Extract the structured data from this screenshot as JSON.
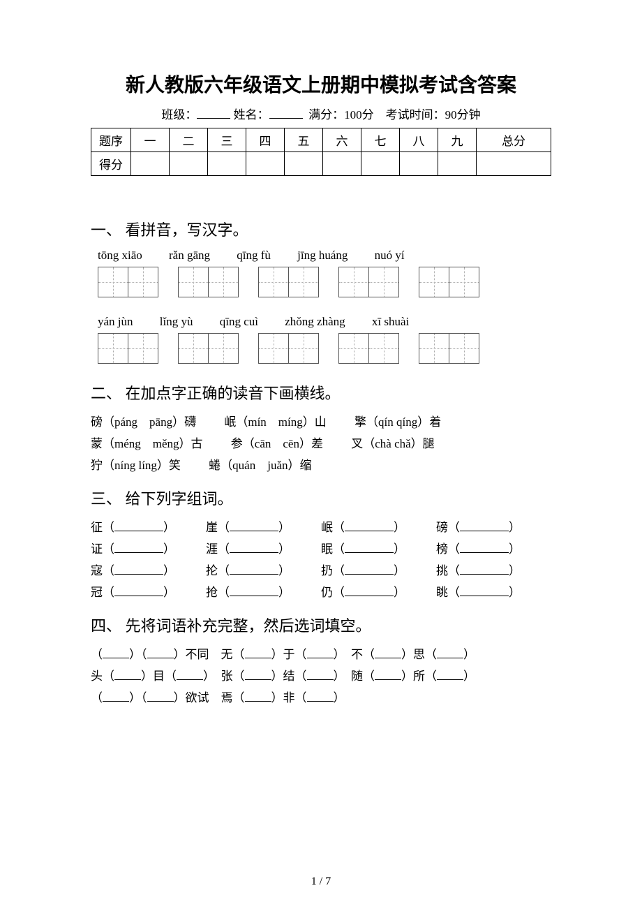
{
  "title": "新人教版六年级语文上册期中模拟考试含答案",
  "subtitle": {
    "class_label": "班级：",
    "name_label": "姓名：",
    "full_label": "满分：100分",
    "time_label": "考试时间：90分钟"
  },
  "score_table": {
    "row1": [
      "题序",
      "一",
      "二",
      "三",
      "四",
      "五",
      "六",
      "七",
      "八",
      "九",
      "总分"
    ],
    "row2_label": "得分"
  },
  "q1": {
    "heading": "一、 看拼音，写汉字。",
    "row1_pinyin": [
      "tōng xiāo",
      "rǎn gāng",
      "qīng fù",
      "jīng huáng",
      "nuó yí"
    ],
    "row2_pinyin": [
      "yán jùn",
      "lǐng yù",
      "qīng cuì",
      "zhǒng zhàng",
      "xī shuài"
    ]
  },
  "q2": {
    "heading": "二、 在加点字正确的读音下画横线。",
    "lines": [
      [
        {
          "char": "磅",
          "opts": "（páng　pāng）",
          "tail": "礴"
        },
        {
          "char": "岷",
          "opts": "（mín　míng）",
          "tail": "山"
        },
        {
          "char": "擎",
          "opts": "（qín qíng）",
          "tail": "着"
        }
      ],
      [
        {
          "char": "蒙",
          "opts": "（méng　měng）",
          "tail": "古"
        },
        {
          "char": "参",
          "opts": "（cān　cēn）",
          "tail": "差"
        },
        {
          "char": "叉",
          "opts": "（chà chǎ）",
          "tail": "腿"
        }
      ],
      [
        {
          "char": "狞",
          "opts": "（níng líng）",
          "tail": "笑"
        },
        {
          "char": "蜷",
          "opts": "（quán　juǎn）",
          "tail": "缩"
        }
      ]
    ]
  },
  "q3": {
    "heading": "三、 给下列字组词。",
    "rows": [
      [
        "征",
        "崖",
        "岷",
        "磅"
      ],
      [
        "证",
        "涯",
        "眠",
        "榜"
      ],
      [
        "寇",
        "抡",
        "扔",
        "挑"
      ],
      [
        "冠",
        "抢",
        "仍",
        "眺"
      ]
    ]
  },
  "q4": {
    "heading": "四、 先将词语补充完整，然后选词填空。",
    "lines": [
      "（___）（___）不同　无（___）于（___）　不（___）思（___）",
      "头（___）目（___）　张（___）结（___）　随（___）所（___）",
      "（___）（___）欲试　焉（___）非（___）"
    ]
  },
  "page_num": "1 / 7"
}
